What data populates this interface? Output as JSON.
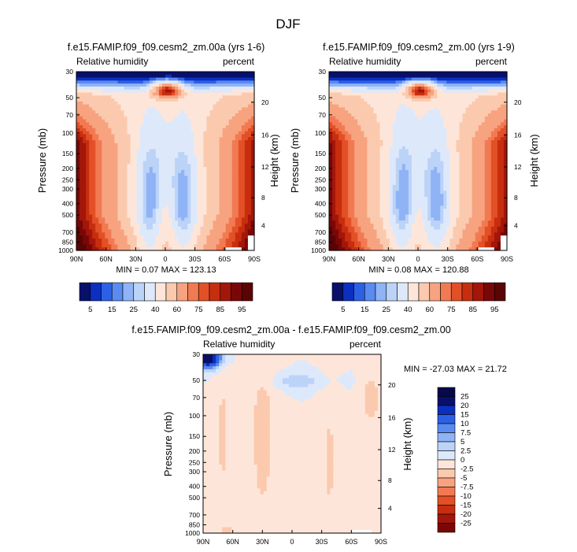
{
  "figure_title": "DJF",
  "chart_data": [
    {
      "type": "heatmap",
      "title": "f.e15.FAMIP.f09_f09.cesm2_zm.00a (yrs 1-6)",
      "left_string": "Relative humidity",
      "right_string": "percent",
      "xlabel": "",
      "ylabel": "Pressure (mb)",
      "ylabel_right": "Height (km)",
      "x_ticks": [
        "90N",
        "60N",
        "30N",
        "0",
        "30S",
        "60S",
        "90S"
      ],
      "y_ticks": [
        "30",
        "50",
        "70",
        "100",
        "150",
        "200",
        "250",
        "300",
        "400",
        "500",
        "700",
        "850",
        "1000"
      ],
      "height_ticks": [
        "20",
        "16",
        "12",
        "8",
        "4"
      ],
      "xlim": [
        90,
        -90
      ],
      "ylim_mb": [
        1000,
        30
      ],
      "min": "0.07",
      "max": "123.13",
      "stats": "MIN = 0.07  MAX = 123.13",
      "colorbar_levels": [
        "5",
        "15",
        "25",
        "40",
        "60",
        "75",
        "85",
        "95"
      ]
    },
    {
      "type": "heatmap",
      "title": "f.e15.FAMIP.f09_f09.cesm2_zm.00 (yrs 1-9)",
      "left_string": "Relative humidity",
      "right_string": "percent",
      "xlabel": "",
      "ylabel": "Pressure (mb)",
      "ylabel_right": "Height (km)",
      "x_ticks": [
        "90N",
        "60N",
        "30N",
        "0",
        "30S",
        "60S",
        "90S"
      ],
      "y_ticks": [
        "30",
        "50",
        "70",
        "100",
        "150",
        "200",
        "250",
        "300",
        "400",
        "500",
        "700",
        "850",
        "1000"
      ],
      "height_ticks": [
        "20",
        "16",
        "12",
        "8",
        "4"
      ],
      "xlim": [
        90,
        -90
      ],
      "ylim_mb": [
        1000,
        30
      ],
      "min": "0.08",
      "max": "120.88",
      "stats": "MIN = 0.08  MAX = 120.88",
      "colorbar_levels": [
        "5",
        "15",
        "25",
        "40",
        "60",
        "75",
        "85",
        "95"
      ]
    },
    {
      "type": "heatmap",
      "title": "f.e15.FAMIP.f09_f09.cesm2_zm.00a - f.e15.FAMIP.f09_f09.cesm2_zm.00",
      "left_string": "Relative humidity",
      "right_string": "percent",
      "xlabel": "",
      "ylabel": "Pressure (mb)",
      "ylabel_right": "Height (km)",
      "x_ticks": [
        "90N",
        "60N",
        "30N",
        "0",
        "30S",
        "60S",
        "90S"
      ],
      "y_ticks": [
        "30",
        "50",
        "70",
        "100",
        "150",
        "200",
        "250",
        "300",
        "400",
        "500",
        "700",
        "850",
        "1000"
      ],
      "height_ticks": [
        "20",
        "16",
        "12",
        "8",
        "4"
      ],
      "xlim": [
        90,
        -90
      ],
      "ylim_mb": [
        1000,
        30
      ],
      "min": "-27.03",
      "max": "21.72",
      "stats": "MIN = -27.03  MAX = 21.72",
      "colorbar_levels": [
        "25",
        "20",
        "15",
        "10",
        "7.5",
        "5",
        "2.5",
        "0",
        "-2.5",
        "-5",
        "-7.5",
        "-10",
        "-15",
        "-20",
        "-25"
      ]
    }
  ],
  "colors": {
    "abs_scale": [
      "#08106c",
      "#0b2fc0",
      "#2c61e6",
      "#5a8bf0",
      "#8fb3f5",
      "#bcd3f8",
      "#dde9fb",
      "#fde6d9",
      "#fbcaae",
      "#f7a380",
      "#f27a52",
      "#e35027",
      "#c72e0f",
      "#a3160a",
      "#7a0707"
    ],
    "diff_scale": [
      "#7a0707",
      "#a3160a",
      "#c72e0f",
      "#e35027",
      "#f27a52",
      "#f7a380",
      "#fbcaae",
      "#fde6d9",
      "#dde9fb",
      "#bcd3f8",
      "#8fb3f5",
      "#5a8bf0",
      "#2c61e6",
      "#0b2fc0",
      "#08106c",
      "#06094a"
    ],
    "missing": "#ffffff"
  }
}
